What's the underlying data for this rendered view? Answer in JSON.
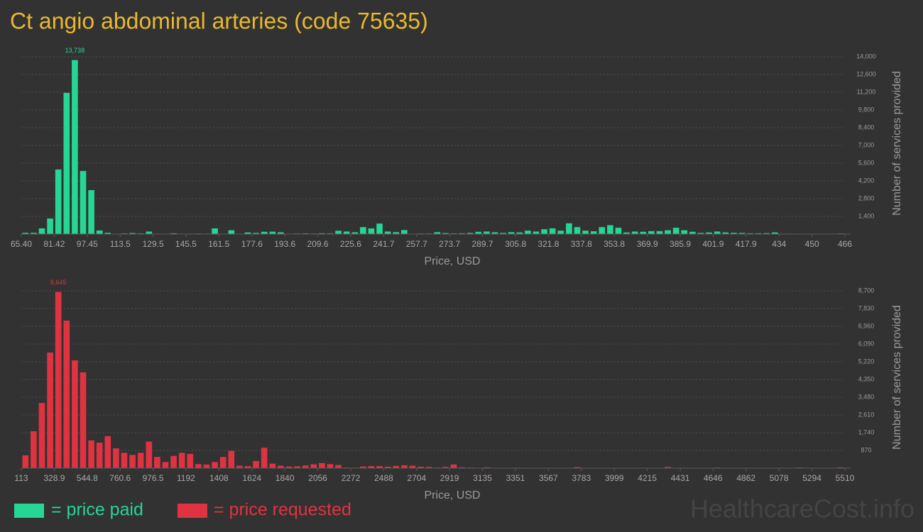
{
  "title": "Ct angio abdominal arteries (code 75635)",
  "watermark": "HealthcareCost.info",
  "legend": [
    {
      "label": "= price paid",
      "color": "#26d695"
    },
    {
      "label": "= price requested",
      "color": "#e03341"
    }
  ],
  "chart_data": [
    {
      "type": "histogram",
      "color": "#26d695",
      "grid": true,
      "x_label": "Price, USD",
      "y_label": "Number of services provided",
      "xlim": [
        65.4,
        466
      ],
      "ylim": [
        0,
        14000
      ],
      "xticks": [
        {
          "value": 65.4,
          "label": "65.40"
        },
        81.42,
        97.45,
        113.5,
        129.5,
        145.5,
        161.5,
        177.6,
        193.6,
        209.6,
        225.6,
        241.7,
        257.7,
        273.7,
        289.7,
        305.8,
        321.8,
        337.8,
        353.8,
        369.9,
        385.9,
        401.9,
        417.9,
        434,
        450,
        466
      ],
      "yticks": [
        {
          "value": 1400,
          "label": "1,400"
        },
        {
          "value": 2800,
          "label": "2,800"
        },
        {
          "value": 4200,
          "label": "4,200"
        },
        {
          "value": 5600,
          "label": "5,600"
        },
        {
          "value": 7000,
          "label": "7,000"
        },
        {
          "value": 8400,
          "label": "8,400"
        },
        {
          "value": 9800,
          "label": "9,800"
        },
        {
          "value": 11200,
          "label": "11,200"
        },
        {
          "value": 12600,
          "label": "12,600"
        },
        {
          "value": 14000,
          "label": "14,000"
        }
      ],
      "bins": [
        65.4,
        69.41,
        73.41,
        77.42,
        81.42,
        85.43,
        89.44,
        93.44,
        97.45,
        101.45,
        105.46,
        109.47,
        113.47,
        117.48,
        121.48,
        125.49,
        129.5,
        133.5,
        137.51,
        141.51,
        145.52,
        149.53,
        153.53,
        157.54,
        161.54,
        165.55,
        169.56,
        173.56,
        177.57,
        181.57,
        185.58,
        189.59,
        193.59,
        197.6,
        201.6,
        205.61,
        209.62,
        213.62,
        217.63,
        221.63,
        225.64,
        229.65,
        233.65,
        237.66,
        241.66,
        245.67,
        249.68,
        253.68,
        257.69,
        261.69,
        265.7,
        269.71,
        273.71,
        277.72,
        281.72,
        285.73,
        289.74,
        293.74,
        297.75,
        301.75,
        305.76,
        309.77,
        313.77,
        317.78,
        321.78,
        325.79,
        329.8,
        333.8,
        337.81,
        341.81,
        345.82,
        349.83,
        353.83,
        357.84,
        361.84,
        365.85,
        369.86,
        373.86,
        377.87,
        381.87,
        385.88,
        389.89,
        393.89,
        397.9,
        401.9,
        405.91,
        409.92,
        413.92,
        417.93,
        421.93,
        425.94,
        429.95,
        433.95,
        437.96,
        441.96,
        445.97,
        449.98,
        453.98,
        457.99,
        461.99,
        466
      ],
      "values": [
        100,
        100,
        450,
        1230,
        5100,
        11150,
        13738,
        4980,
        3470,
        280,
        100,
        0,
        50,
        80,
        50,
        200,
        0,
        0,
        60,
        0,
        30,
        40,
        30,
        450,
        0,
        300,
        0,
        130,
        90,
        180,
        190,
        140,
        0,
        40,
        50,
        40,
        60,
        50,
        260,
        200,
        140,
        550,
        450,
        830,
        200,
        150,
        320,
        0,
        40,
        40,
        150,
        80,
        50,
        60,
        90,
        180,
        200,
        140,
        90,
        150,
        130,
        270,
        200,
        380,
        450,
        270,
        850,
        550,
        270,
        220,
        550,
        700,
        500,
        130,
        200,
        180,
        230,
        230,
        300,
        500,
        300,
        180,
        90,
        130,
        200,
        130,
        100,
        90,
        60,
        60,
        70,
        130,
        0,
        30,
        0,
        0,
        0,
        0,
        0,
        40
      ],
      "value_labels": [
        null,
        null,
        null,
        null,
        null,
        null,
        "13,738",
        null,
        null,
        null,
        null,
        null,
        null,
        null,
        null,
        null,
        null,
        null,
        null,
        null,
        null,
        null,
        null,
        null,
        null,
        null,
        null,
        null,
        null,
        null,
        null,
        null,
        null,
        null,
        null,
        null,
        null,
        null,
        null,
        null,
        null,
        null,
        null,
        null,
        null,
        null,
        null,
        null,
        null,
        null,
        null,
        null,
        null,
        null,
        null,
        null,
        null,
        null,
        null,
        null,
        null,
        null,
        null,
        null,
        null,
        null,
        null,
        null,
        null,
        null,
        null,
        null,
        null,
        null,
        null,
        null,
        null,
        null,
        null,
        null,
        null,
        null,
        null,
        null,
        null,
        null,
        null,
        null,
        null,
        null,
        null,
        null,
        null,
        null,
        null,
        null,
        null,
        null,
        null,
        null
      ]
    },
    {
      "type": "histogram",
      "color": "#e03341",
      "grid": true,
      "x_label": "Price, USD",
      "y_label": "Number of services provided",
      "xlim": [
        113,
        5510
      ],
      "ylim": [
        0,
        8700
      ],
      "xticks": [
        113,
        328.9,
        544.8,
        760.6,
        976.5,
        1192,
        1408,
        1624,
        1840,
        2056,
        2272,
        2488,
        2704,
        2919,
        3135,
        3351,
        3567,
        3783,
        3999,
        4215,
        4431,
        4646,
        4862,
        5078,
        5294,
        5510
      ],
      "yticks": [
        870,
        {
          "value": 1740,
          "label": "1,740"
        },
        {
          "value": 2610,
          "label": "2,610"
        },
        {
          "value": 3480,
          "label": "3,480"
        },
        {
          "value": 4350,
          "label": "4,350"
        },
        {
          "value": 5220,
          "label": "5,220"
        },
        {
          "value": 6090,
          "label": "6,090"
        },
        {
          "value": 6960,
          "label": "6,960"
        },
        {
          "value": 7830,
          "label": "7,830"
        },
        {
          "value": 8700,
          "label": "8,700"
        }
      ],
      "bins": [
        113,
        166.97,
        220.94,
        274.91,
        328.88,
        382.85,
        436.82,
        490.79,
        544.76,
        598.73,
        652.7,
        706.67,
        760.64,
        814.61,
        868.58,
        922.55,
        976.52,
        1030.49,
        1084.46,
        1138.43,
        1192.4,
        1246.37,
        1300.34,
        1354.31,
        1408.28,
        1462.25,
        1516.22,
        1570.19,
        1624.16,
        1678.13,
        1732.1,
        1786.07,
        1840.04,
        1894.01,
        1947.98,
        2001.95,
        2055.92,
        2109.89,
        2163.86,
        2217.83,
        2271.8,
        2325.77,
        2379.74,
        2433.71,
        2487.68,
        2541.65,
        2595.62,
        2649.59,
        2703.56,
        2757.53,
        2811.5,
        2865.47,
        2919.44,
        2973.41,
        3027.38,
        3081.35,
        3135.32,
        3189.29,
        3243.26,
        3297.23,
        3351.2,
        3405.17,
        3459.14,
        3513.11,
        3567.08,
        3621.05,
        3675.02,
        3728.99,
        3782.96,
        3836.93,
        3890.9,
        3944.87,
        3998.84,
        4052.81,
        4106.78,
        4160.75,
        4214.72,
        4268.69,
        4322.66,
        4376.63,
        4430.6,
        4484.57,
        4538.54,
        4592.51,
        4646.48,
        4700.45,
        4754.42,
        4808.39,
        4862.36,
        4916.33,
        4970.3,
        5024.27,
        5078.24,
        5132.21,
        5186.18,
        5240.15,
        5294.12,
        5348.09,
        5402.06,
        5456.03,
        5510
      ],
      "values": [
        630,
        1810,
        3200,
        5670,
        8645,
        7240,
        5290,
        4700,
        1360,
        1250,
        1570,
        970,
        750,
        650,
        750,
        1300,
        550,
        300,
        600,
        750,
        700,
        200,
        180,
        300,
        550,
        850,
        120,
        100,
        350,
        1000,
        220,
        120,
        80,
        90,
        130,
        190,
        250,
        200,
        150,
        30,
        20,
        80,
        100,
        100,
        70,
        110,
        140,
        120,
        70,
        60,
        30,
        60,
        180,
        40,
        30,
        0,
        40,
        0,
        0,
        0,
        20,
        0,
        0,
        0,
        0,
        0,
        0,
        50,
        0,
        0,
        0,
        0,
        0,
        0,
        0,
        0,
        0,
        0,
        60,
        0,
        0,
        0,
        0,
        0,
        30,
        0,
        0,
        0,
        0,
        0,
        0,
        0,
        0,
        0,
        30,
        0,
        0,
        0,
        0,
        40
      ],
      "value_labels": [
        null,
        null,
        null,
        null,
        "8,645",
        null,
        null,
        null,
        null,
        null,
        null,
        null,
        null,
        null,
        null,
        null,
        null,
        null,
        null,
        null,
        null,
        null,
        null,
        null,
        null,
        null,
        null,
        null,
        null,
        null,
        null,
        null,
        null,
        null,
        null,
        null,
        null,
        null,
        null,
        null,
        null,
        null,
        null,
        null,
        null,
        null,
        null,
        null,
        null,
        null,
        null,
        null,
        null,
        null,
        null,
        null,
        null,
        null,
        null,
        null,
        null,
        null,
        null,
        null,
        null,
        null,
        null,
        null,
        null,
        null,
        null,
        null,
        null,
        null,
        null,
        null,
        null,
        null,
        null,
        null,
        null,
        null,
        null,
        null,
        null,
        null,
        null,
        null,
        null,
        null,
        null,
        null,
        null,
        null,
        null,
        null,
        null,
        null,
        null,
        null
      ]
    }
  ]
}
